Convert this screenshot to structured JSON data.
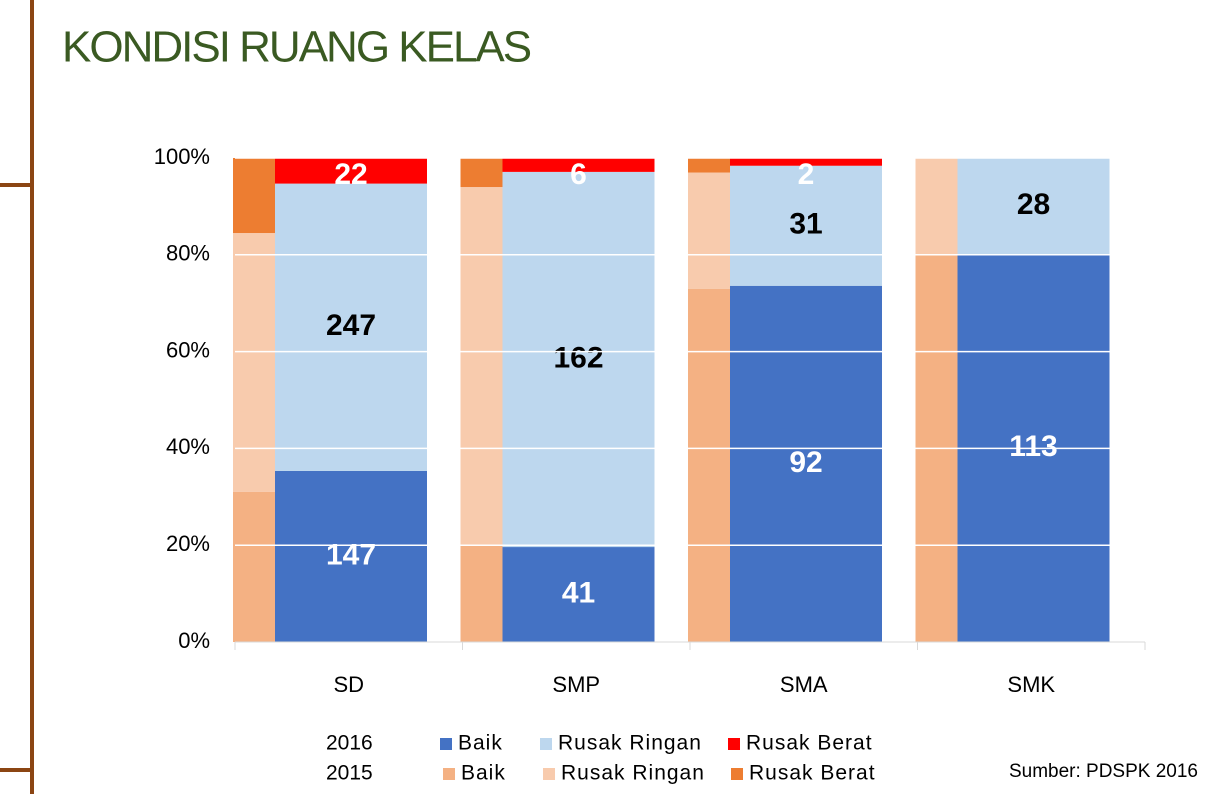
{
  "chart_data": {
    "type": "stacked_bar_100",
    "title": "KONDISI RUANG KELAS",
    "source": "Sumber: PDSPK 2016",
    "categories": [
      "SD",
      "SMP",
      "SMA",
      "SMK"
    ],
    "series": [
      {
        "group": "2016",
        "name": "Baik",
        "color": "#4472c4",
        "label_color": "#ffffff",
        "show_labels": true,
        "values": [
          147,
          41,
          92,
          113
        ]
      },
      {
        "group": "2016",
        "name": "Rusak Ringan",
        "color": "#bdd7ee",
        "label_color": "#000000",
        "show_labels": true,
        "values": [
          247,
          162,
          31,
          28
        ]
      },
      {
        "group": "2016",
        "name": "Rusak Berat",
        "color": "#ff0000",
        "label_color": "#ffffff",
        "show_labels": true,
        "values": [
          22,
          6,
          2,
          0
        ]
      },
      {
        "group": "2015",
        "name": "Baik",
        "color": "#f4b183",
        "show_labels": false,
        "values": [
          31,
          20,
          73,
          80
        ]
      },
      {
        "group": "2015",
        "name": "Rusak Ringan",
        "color": "#f8cbad",
        "show_labels": false,
        "values": [
          53.5,
          74,
          24,
          20
        ]
      },
      {
        "group": "2015",
        "name": "Rusak Berat",
        "color": "#ed7d31",
        "show_labels": false,
        "values": [
          15.5,
          6,
          3,
          0
        ]
      }
    ],
    "ylim": [
      0,
      100
    ],
    "yticks": [
      {
        "value": 0,
        "label": "0%"
      },
      {
        "value": 20,
        "label": "20%"
      },
      {
        "value": 40,
        "label": "40%"
      },
      {
        "value": 60,
        "label": "60%"
      },
      {
        "value": 80,
        "label": "80%"
      },
      {
        "value": 100,
        "label": "100%"
      }
    ],
    "grid": true
  }
}
